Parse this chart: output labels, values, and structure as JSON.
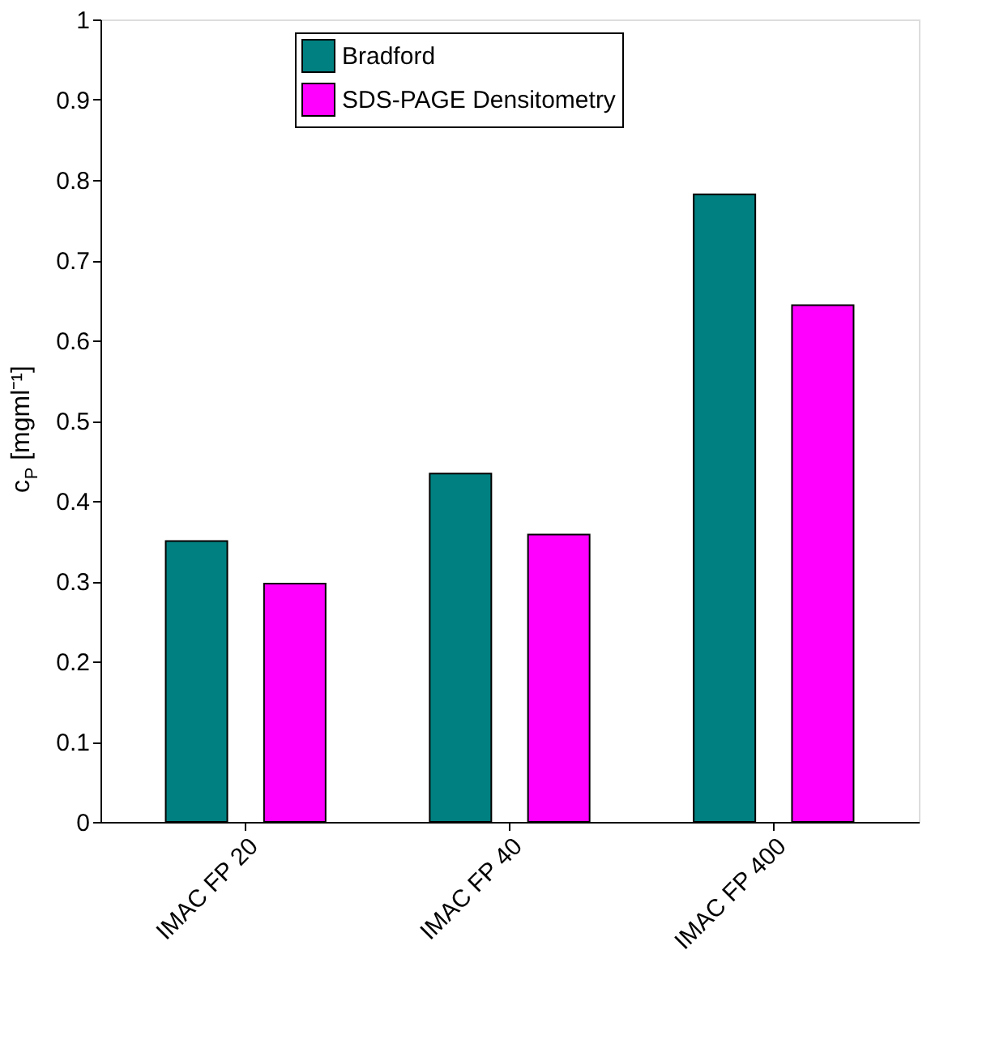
{
  "chart_data": {
    "type": "bar",
    "ylabel": "c$_{P}$ [mgml⁻¹]",
    "categories": [
      "IMAC FP 20",
      "IMAC FP 40",
      "IMAC FP 400"
    ],
    "series": [
      {
        "name": "Bradford",
        "color": "#008080",
        "values": [
          0.35,
          0.434,
          0.782
        ]
      },
      {
        "name": "SDS-PAGE Densitometry",
        "color": "#ff00ff",
        "values": [
          0.297,
          0.358,
          0.644
        ]
      }
    ],
    "ylim": [
      0,
      1
    ],
    "yticks": [
      0,
      0.1,
      0.2,
      0.3,
      0.4,
      0.5,
      0.6,
      0.7,
      0.8,
      0.9,
      1
    ],
    "legend": "top",
    "grid": false
  }
}
